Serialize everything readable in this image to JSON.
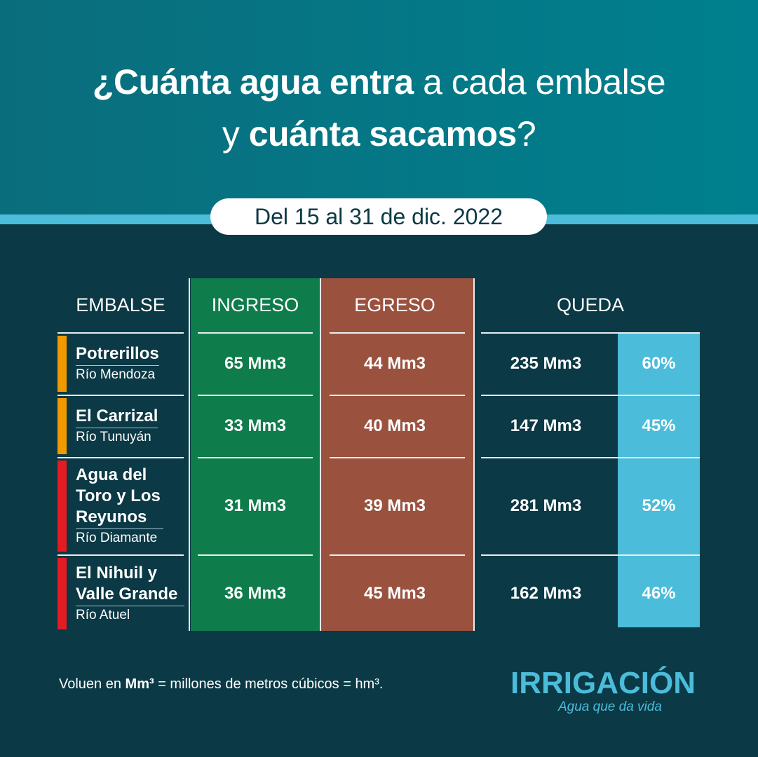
{
  "title": {
    "line1_bold": "¿Cuánta agua entra",
    "line1_rest": " a cada embalse",
    "line2_pre": "y ",
    "line2_bold": "cuánta sacamos",
    "line2_end": "?"
  },
  "period": "Del 15 al 31 de dic. 2022",
  "colors": {
    "ingreso": "#0f7c4b",
    "egreso": "#9a523f",
    "queda_pct": "#4bbcd9",
    "orange": "#f09a00",
    "red": "#e31b23"
  },
  "chart_data": {
    "type": "table",
    "columns": [
      "EMBALSE",
      "INGRESO",
      "EGRESO",
      "QUEDA"
    ],
    "rows": [
      {
        "name": "Potrerillos",
        "river": "Río Mendoza",
        "ingreso": "65 Mm3",
        "egreso": "44 Mm3",
        "queda": "235 Mm3",
        "pct": "60%",
        "status_color": "#f09a00"
      },
      {
        "name": "El Carrizal",
        "river": "Río Tunuyán",
        "ingreso": "33 Mm3",
        "egreso": "40 Mm3",
        "queda": "147 Mm3",
        "pct": "45%",
        "status_color": "#f09a00"
      },
      {
        "name": "Agua del Toro y Los Reyunos",
        "river": "Río Diamante",
        "ingreso": "31 Mm3",
        "egreso": "39 Mm3",
        "queda": "281 Mm3",
        "pct": "52%",
        "status_color": "#e31b23"
      },
      {
        "name": "El Nihuil y Valle Grande",
        "river": "Río Atuel",
        "ingreso": "36 Mm3",
        "egreso": "45 Mm3",
        "queda": "162 Mm3",
        "pct": "46%",
        "status_color": "#e31b23"
      }
    ]
  },
  "footer": {
    "pre": "Voluen en ",
    "bold": "Mm³",
    "post": " = millones de metros cúbicos = hm³."
  },
  "logo": {
    "name": "IRRIGACIÓN",
    "tagline": "Agua que da vida"
  }
}
